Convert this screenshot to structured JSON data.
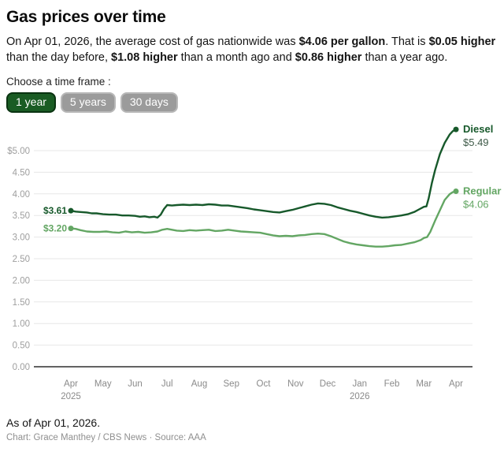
{
  "title": "Gas prices over time",
  "description": {
    "segments": [
      {
        "text": "On Apr 01, 2026, the average cost of gas nationwide was ",
        "bold": false
      },
      {
        "text": "$4.06 per gallon",
        "bold": true
      },
      {
        "text": ". That is ",
        "bold": false
      },
      {
        "text": "$0.05 higher",
        "bold": true
      },
      {
        "text": " than the day before, ",
        "bold": false
      },
      {
        "text": "$1.08 higher",
        "bold": true
      },
      {
        "text": " than a month ago and ",
        "bold": false
      },
      {
        "text": "$0.86 higher",
        "bold": true
      },
      {
        "text": " than a year ago.",
        "bold": false
      }
    ]
  },
  "timeframe": {
    "label": "Choose a time frame :",
    "options": [
      {
        "label": "1 year",
        "active": true
      },
      {
        "label": "5 years",
        "active": false
      },
      {
        "label": "30 days",
        "active": false
      }
    ]
  },
  "chart_data": {
    "type": "line",
    "title": "Gas prices over time",
    "x_unit": "months since Apr 2025",
    "grid": true,
    "ylim": [
      0,
      5.6
    ],
    "x_ticks": [
      {
        "t": 0,
        "label": "Apr",
        "sublabel": "2025"
      },
      {
        "t": 1,
        "label": "May"
      },
      {
        "t": 2,
        "label": "Jun"
      },
      {
        "t": 3,
        "label": "Jul"
      },
      {
        "t": 4,
        "label": "Aug"
      },
      {
        "t": 5,
        "label": "Sep"
      },
      {
        "t": 6,
        "label": "Oct"
      },
      {
        "t": 7,
        "label": "Nov"
      },
      {
        "t": 8,
        "label": "Dec"
      },
      {
        "t": 9,
        "label": "Jan",
        "sublabel": "2026"
      },
      {
        "t": 10,
        "label": "Feb"
      },
      {
        "t": 11,
        "label": "Mar"
      },
      {
        "t": 12,
        "label": "Apr"
      }
    ],
    "y_ticks": [
      {
        "value": 5.0,
        "label": "$5.00"
      },
      {
        "value": 4.5,
        "label": "4.50"
      },
      {
        "value": 4.0,
        "label": "4.00"
      },
      {
        "value": 3.5,
        "label": "3.50"
      },
      {
        "value": 3.0,
        "label": "3.00"
      },
      {
        "value": 2.5,
        "label": "2.50"
      },
      {
        "value": 2.0,
        "label": "2.00"
      },
      {
        "value": 1.5,
        "label": "1.50"
      },
      {
        "value": 1.0,
        "label": "1.00"
      },
      {
        "value": 0.5,
        "label": "0.50"
      },
      {
        "value": 0.0,
        "label": "0.00"
      }
    ],
    "series": [
      {
        "name": "Diesel",
        "color": "#17592b",
        "value_label_color": "#3e5a48",
        "start_value": 3.61,
        "start_label": "$3.61",
        "end_value": 5.49,
        "end_label": "$5.49",
        "points": [
          [
            0,
            3.61
          ],
          [
            0.15,
            3.59
          ],
          [
            0.3,
            3.58
          ],
          [
            0.5,
            3.57
          ],
          [
            0.65,
            3.55
          ],
          [
            0.8,
            3.55
          ],
          [
            1,
            3.53
          ],
          [
            1.2,
            3.52
          ],
          [
            1.4,
            3.52
          ],
          [
            1.6,
            3.5
          ],
          [
            1.8,
            3.5
          ],
          [
            2,
            3.49
          ],
          [
            2.15,
            3.47
          ],
          [
            2.3,
            3.48
          ],
          [
            2.45,
            3.46
          ],
          [
            2.6,
            3.47
          ],
          [
            2.7,
            3.45
          ],
          [
            2.8,
            3.52
          ],
          [
            2.9,
            3.65
          ],
          [
            3,
            3.74
          ],
          [
            3.15,
            3.73
          ],
          [
            3.3,
            3.74
          ],
          [
            3.5,
            3.75
          ],
          [
            3.7,
            3.74
          ],
          [
            3.9,
            3.75
          ],
          [
            4.1,
            3.74
          ],
          [
            4.3,
            3.76
          ],
          [
            4.5,
            3.75
          ],
          [
            4.7,
            3.73
          ],
          [
            4.9,
            3.73
          ],
          [
            5.1,
            3.71
          ],
          [
            5.3,
            3.69
          ],
          [
            5.5,
            3.67
          ],
          [
            5.7,
            3.64
          ],
          [
            5.9,
            3.62
          ],
          [
            6.1,
            3.6
          ],
          [
            6.3,
            3.58
          ],
          [
            6.5,
            3.57
          ],
          [
            6.7,
            3.6
          ],
          [
            6.9,
            3.63
          ],
          [
            7.1,
            3.67
          ],
          [
            7.3,
            3.71
          ],
          [
            7.5,
            3.75
          ],
          [
            7.7,
            3.78
          ],
          [
            7.9,
            3.77
          ],
          [
            8.1,
            3.74
          ],
          [
            8.3,
            3.69
          ],
          [
            8.5,
            3.65
          ],
          [
            8.7,
            3.61
          ],
          [
            8.9,
            3.58
          ],
          [
            9.1,
            3.54
          ],
          [
            9.3,
            3.5
          ],
          [
            9.5,
            3.47
          ],
          [
            9.7,
            3.45
          ],
          [
            9.9,
            3.46
          ],
          [
            10.1,
            3.48
          ],
          [
            10.3,
            3.5
          ],
          [
            10.5,
            3.53
          ],
          [
            10.7,
            3.58
          ],
          [
            10.85,
            3.64
          ],
          [
            11,
            3.7
          ],
          [
            11.08,
            3.71
          ],
          [
            11.15,
            3.9
          ],
          [
            11.25,
            4.25
          ],
          [
            11.35,
            4.55
          ],
          [
            11.5,
            4.92
          ],
          [
            11.65,
            5.18
          ],
          [
            11.8,
            5.37
          ],
          [
            11.9,
            5.45
          ],
          [
            12,
            5.49
          ]
        ]
      },
      {
        "name": "Regular",
        "color": "#63a663",
        "value_label_color": "#63a663",
        "start_value": 3.2,
        "start_label": "$3.20",
        "end_value": 4.06,
        "end_label": "$4.06",
        "points": [
          [
            0,
            3.2
          ],
          [
            0.15,
            3.19
          ],
          [
            0.3,
            3.16
          ],
          [
            0.5,
            3.13
          ],
          [
            0.7,
            3.12
          ],
          [
            0.9,
            3.12
          ],
          [
            1.1,
            3.13
          ],
          [
            1.3,
            3.11
          ],
          [
            1.5,
            3.1
          ],
          [
            1.7,
            3.13
          ],
          [
            1.9,
            3.11
          ],
          [
            2.1,
            3.12
          ],
          [
            2.3,
            3.1
          ],
          [
            2.5,
            3.11
          ],
          [
            2.7,
            3.13
          ],
          [
            2.85,
            3.17
          ],
          [
            3,
            3.19
          ],
          [
            3.15,
            3.17
          ],
          [
            3.3,
            3.15
          ],
          [
            3.5,
            3.14
          ],
          [
            3.7,
            3.16
          ],
          [
            3.9,
            3.15
          ],
          [
            4.1,
            3.16
          ],
          [
            4.3,
            3.17
          ],
          [
            4.5,
            3.14
          ],
          [
            4.7,
            3.15
          ],
          [
            4.9,
            3.17
          ],
          [
            5.1,
            3.15
          ],
          [
            5.3,
            3.13
          ],
          [
            5.5,
            3.12
          ],
          [
            5.7,
            3.11
          ],
          [
            5.9,
            3.1
          ],
          [
            6.1,
            3.07
          ],
          [
            6.3,
            3.04
          ],
          [
            6.5,
            3.02
          ],
          [
            6.7,
            3.03
          ],
          [
            6.9,
            3.02
          ],
          [
            7.1,
            3.04
          ],
          [
            7.3,
            3.05
          ],
          [
            7.5,
            3.07
          ],
          [
            7.7,
            3.08
          ],
          [
            7.9,
            3.07
          ],
          [
            8.1,
            3.02
          ],
          [
            8.3,
            2.96
          ],
          [
            8.5,
            2.9
          ],
          [
            8.7,
            2.86
          ],
          [
            8.9,
            2.83
          ],
          [
            9.1,
            2.81
          ],
          [
            9.3,
            2.79
          ],
          [
            9.5,
            2.78
          ],
          [
            9.7,
            2.78
          ],
          [
            9.9,
            2.79
          ],
          [
            10.1,
            2.81
          ],
          [
            10.3,
            2.82
          ],
          [
            10.5,
            2.85
          ],
          [
            10.7,
            2.88
          ],
          [
            10.9,
            2.93
          ],
          [
            11,
            2.98
          ],
          [
            11.1,
            3.0
          ],
          [
            11.2,
            3.12
          ],
          [
            11.35,
            3.38
          ],
          [
            11.5,
            3.62
          ],
          [
            11.65,
            3.86
          ],
          [
            11.8,
            3.99
          ],
          [
            11.9,
            4.04
          ],
          [
            12,
            4.06
          ]
        ]
      }
    ]
  },
  "footer": {
    "as_of": "As of Apr 01, 2026.",
    "credit": "Chart: Grace Manthey / CBS News · Source: AAA"
  }
}
